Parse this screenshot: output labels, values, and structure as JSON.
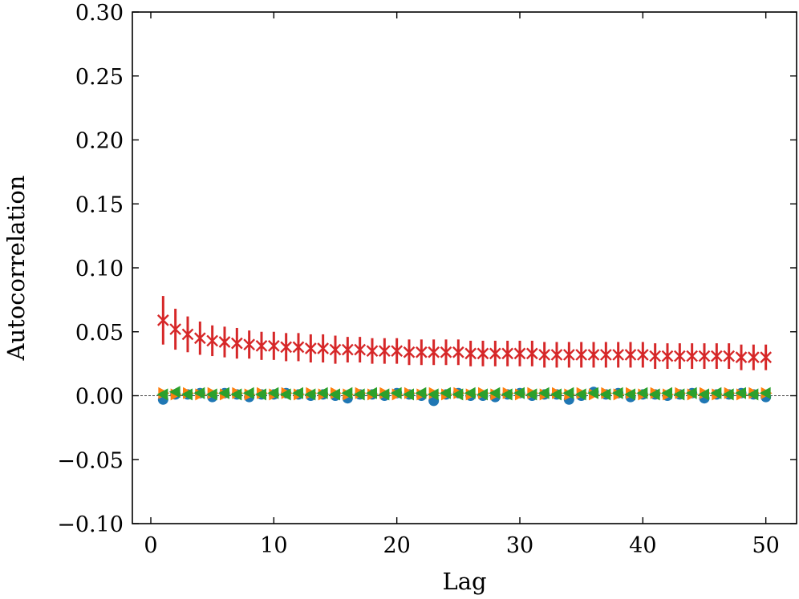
{
  "chart_data": {
    "type": "scatter",
    "title": "",
    "xlabel": "Lag",
    "ylabel": "Autocorrelation",
    "xlim": [
      -1.5,
      52.5
    ],
    "ylim": [
      -0.1,
      0.3
    ],
    "xticks": [
      0,
      10,
      20,
      30,
      40,
      50
    ],
    "xtick_labels": [
      "0",
      "10",
      "20",
      "30",
      "40",
      "50"
    ],
    "yticks": [
      -0.1,
      -0.05,
      0.0,
      0.05,
      0.1,
      0.15,
      0.2,
      0.25,
      0.3
    ],
    "ytick_labels": [
      "−0.10",
      "−0.05",
      "0.00",
      "0.05",
      "0.10",
      "0.15",
      "0.20",
      "0.25",
      "0.30"
    ],
    "reference_line": {
      "y": 0.0,
      "style": "dashed",
      "color": "#000000"
    },
    "grid": false,
    "x": [
      1,
      2,
      3,
      4,
      5,
      6,
      7,
      8,
      9,
      10,
      11,
      12,
      13,
      14,
      15,
      16,
      17,
      18,
      19,
      20,
      21,
      22,
      23,
      24,
      25,
      26,
      27,
      28,
      29,
      30,
      31,
      32,
      33,
      34,
      35,
      36,
      37,
      38,
      39,
      40,
      41,
      42,
      43,
      44,
      45,
      46,
      47,
      48,
      49,
      50
    ],
    "series": [
      {
        "marker": "circle",
        "color": "#1f77b4",
        "values": [
          -0.003,
          0.001,
          0.001,
          0.002,
          -0.001,
          0.002,
          0.001,
          -0.001,
          0.001,
          0.001,
          0.002,
          0.001,
          0.0,
          0.001,
          0.0,
          -0.002,
          0.001,
          0.001,
          0.0,
          0.002,
          0.001,
          0.0,
          -0.004,
          0.001,
          0.002,
          0.0,
          0.0,
          -0.001,
          0.001,
          0.002,
          0.0,
          0.001,
          0.001,
          -0.003,
          0.0,
          0.003,
          0.001,
          0.002,
          -0.001,
          0.001,
          0.001,
          0.0,
          0.001,
          0.002,
          -0.002,
          0.001,
          0.001,
          0.002,
          0.001,
          -0.001
        ]
      },
      {
        "marker": "triangle-right",
        "color": "#ff7f0e",
        "values": [
          0.002,
          0.001,
          0.002,
          0.001,
          0.002,
          0.001,
          0.002,
          0.001,
          0.002,
          0.001,
          0.002,
          0.001,
          0.002,
          0.001,
          0.002,
          0.001,
          0.002,
          0.001,
          0.002,
          0.001,
          0.002,
          0.001,
          0.002,
          0.001,
          0.002,
          0.001,
          0.002,
          0.001,
          0.002,
          0.001,
          0.002,
          0.001,
          0.002,
          0.001,
          0.002,
          0.001,
          0.002,
          0.001,
          0.002,
          0.001,
          0.002,
          0.001,
          0.002,
          0.001,
          0.002,
          0.001,
          0.002,
          0.001,
          0.002,
          0.002
        ]
      },
      {
        "marker": "triangle-left",
        "color": "#2ca02c",
        "values": [
          0.001,
          0.003,
          0.001,
          0.002,
          0.001,
          0.002,
          0.001,
          0.002,
          0.001,
          0.002,
          0.001,
          0.002,
          0.001,
          0.002,
          0.001,
          0.002,
          0.001,
          0.002,
          0.001,
          0.002,
          0.001,
          0.002,
          0.001,
          0.002,
          0.001,
          0.002,
          0.001,
          0.002,
          0.001,
          0.002,
          0.001,
          0.002,
          0.001,
          0.002,
          0.001,
          0.002,
          0.001,
          0.002,
          0.001,
          0.002,
          0.001,
          0.002,
          0.001,
          0.002,
          0.001,
          0.002,
          0.001,
          0.002,
          0.001,
          0.002
        ]
      },
      {
        "marker": "x",
        "color": "#d62728",
        "values": [
          0.059,
          0.052,
          0.048,
          0.045,
          0.043,
          0.042,
          0.041,
          0.04,
          0.039,
          0.039,
          0.038,
          0.038,
          0.037,
          0.037,
          0.036,
          0.036,
          0.036,
          0.035,
          0.035,
          0.035,
          0.034,
          0.034,
          0.034,
          0.034,
          0.034,
          0.033,
          0.033,
          0.033,
          0.033,
          0.033,
          0.033,
          0.032,
          0.032,
          0.032,
          0.032,
          0.032,
          0.032,
          0.032,
          0.032,
          0.032,
          0.031,
          0.031,
          0.031,
          0.031,
          0.031,
          0.031,
          0.031,
          0.03,
          0.03,
          0.03
        ],
        "errors": [
          0.019,
          0.016,
          0.014,
          0.013,
          0.012,
          0.012,
          0.012,
          0.011,
          0.011,
          0.011,
          0.011,
          0.011,
          0.011,
          0.011,
          0.011,
          0.01,
          0.01,
          0.01,
          0.01,
          0.01,
          0.01,
          0.01,
          0.01,
          0.01,
          0.01,
          0.01,
          0.01,
          0.01,
          0.01,
          0.01,
          0.01,
          0.01,
          0.01,
          0.01,
          0.01,
          0.01,
          0.01,
          0.01,
          0.01,
          0.01,
          0.01,
          0.01,
          0.01,
          0.01,
          0.01,
          0.01,
          0.01,
          0.01,
          0.01,
          0.01
        ]
      }
    ]
  }
}
